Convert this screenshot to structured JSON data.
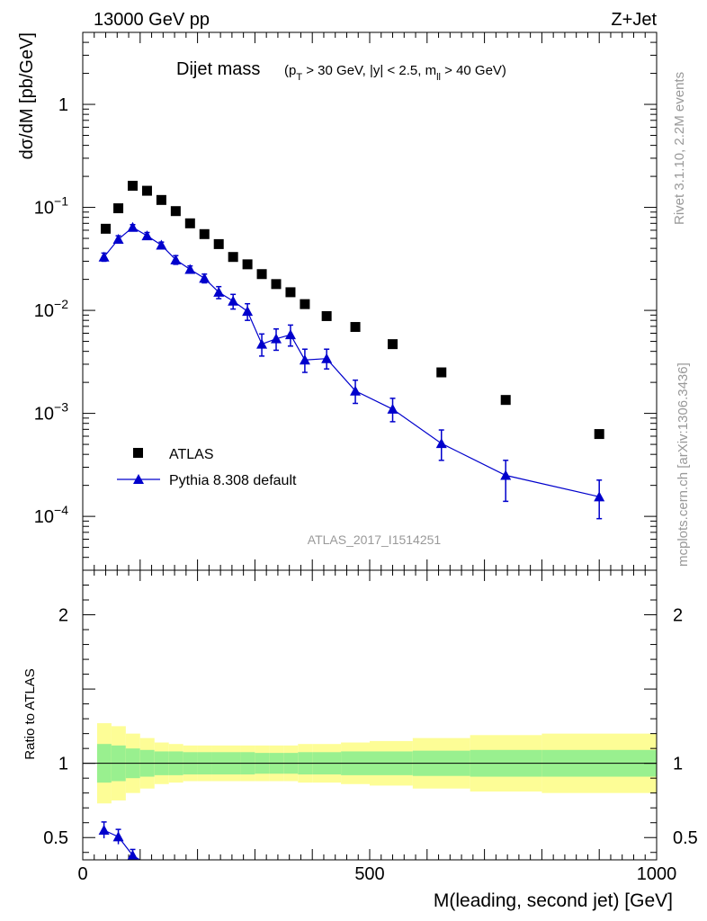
{
  "header": {
    "left": "13000 GeV pp",
    "right": "Z+Jet"
  },
  "side_labels": {
    "rivet": "Rivet 3.1.10,  2.2M events",
    "mcplots": "mcplots.cern.ch [arXiv:1306.3436]"
  },
  "chart_data": {
    "type": "scatter",
    "title": {
      "main": "Dijet mass",
      "cuts": "(p_T > 30 GeV, |y| < 2.5, m_ll > 40 GeV)"
    },
    "analysis_tag": "ATLAS_2017_I1514251",
    "xlabel": "M(leading, second jet) [GeV]",
    "ylabel": "dσ/dM [pb/GeV]",
    "ratio_ylabel": "Ratio to ATLAS",
    "xlim": [
      0,
      1000
    ],
    "ylim_main": [
      3e-05,
      5
    ],
    "yscale_main": "log",
    "ylim_ratio": [
      0.35,
      2.3
    ],
    "x_ticks": [
      0,
      500,
      1000
    ],
    "y_ticks_main": [
      {
        "value": 1,
        "label": "1"
      },
      {
        "value": 0.1,
        "label": "10^-1"
      },
      {
        "value": 0.01,
        "label": "10^-2"
      },
      {
        "value": 0.001,
        "label": "10^-3"
      },
      {
        "value": 0.0001,
        "label": "10^-4"
      }
    ],
    "y_ticks_ratio": [
      0.5,
      1,
      2
    ],
    "legend_position": "lower-left",
    "series": [
      {
        "name": "ATLAS",
        "marker": "square",
        "color": "#000000",
        "x": [
          40,
          62,
          87,
          112,
          137,
          162,
          187,
          212,
          237,
          262,
          287,
          312,
          337,
          362,
          387,
          425,
          475,
          540,
          625,
          737,
          900
        ],
        "y": [
          0.062,
          0.098,
          0.162,
          0.145,
          0.118,
          0.092,
          0.07,
          0.055,
          0.044,
          0.033,
          0.028,
          0.0225,
          0.018,
          0.015,
          0.0115,
          0.0088,
          0.0069,
          0.0047,
          0.0025,
          0.00135,
          0.00063
        ]
      },
      {
        "name": "Pythia 8.308 default",
        "marker": "triangle",
        "color": "#0000cc",
        "x": [
          37,
          62,
          87,
          112,
          137,
          162,
          187,
          212,
          237,
          262,
          287,
          312,
          337,
          362,
          387,
          425,
          475,
          540,
          625,
          737,
          900
        ],
        "y": [
          0.033,
          0.049,
          0.064,
          0.053,
          0.043,
          0.031,
          0.025,
          0.0205,
          0.015,
          0.0123,
          0.0098,
          0.0047,
          0.0053,
          0.0058,
          0.0033,
          0.0034,
          0.00165,
          0.0011,
          0.00051,
          0.00025,
          0.000155
        ],
        "y_err_up": [
          0.003,
          0.004,
          0.004,
          0.004,
          0.003,
          0.003,
          0.002,
          0.002,
          0.002,
          0.002,
          0.0018,
          0.0012,
          0.0013,
          0.0014,
          0.0009,
          0.0008,
          0.00045,
          0.0003,
          0.00018,
          0.0001,
          7e-05
        ],
        "y_err_down": [
          0.003,
          0.004,
          0.004,
          0.004,
          0.003,
          0.003,
          0.002,
          0.002,
          0.002,
          0.002,
          0.0018,
          0.0011,
          0.0012,
          0.0013,
          0.0008,
          0.0007,
          0.0004,
          0.00027,
          0.00016,
          0.00011,
          6e-05
        ]
      }
    ],
    "ratio_series": {
      "name": "Pythia 8.308 default",
      "x": [
        37,
        62,
        87
      ],
      "y": [
        0.55,
        0.505,
        0.38
      ],
      "y_err": [
        0.055,
        0.05,
        0.04
      ]
    },
    "uncertainty_bands": {
      "bin_edges": [
        25,
        50,
        75,
        100,
        125,
        150,
        175,
        200,
        225,
        250,
        275,
        300,
        325,
        350,
        375,
        400,
        450,
        500,
        575,
        675,
        800,
        1000
      ],
      "inner": [
        0.13,
        0.12,
        0.1,
        0.09,
        0.08,
        0.08,
        0.075,
        0.075,
        0.075,
        0.075,
        0.075,
        0.07,
        0.07,
        0.07,
        0.075,
        0.075,
        0.08,
        0.08,
        0.085,
        0.09,
        0.09
      ],
      "outer": [
        0.27,
        0.25,
        0.2,
        0.17,
        0.14,
        0.13,
        0.12,
        0.12,
        0.12,
        0.12,
        0.12,
        0.12,
        0.12,
        0.12,
        0.13,
        0.13,
        0.14,
        0.15,
        0.17,
        0.19,
        0.2
      ],
      "inner_color": "#99f08f",
      "outer_color": "#fdfd96"
    }
  }
}
